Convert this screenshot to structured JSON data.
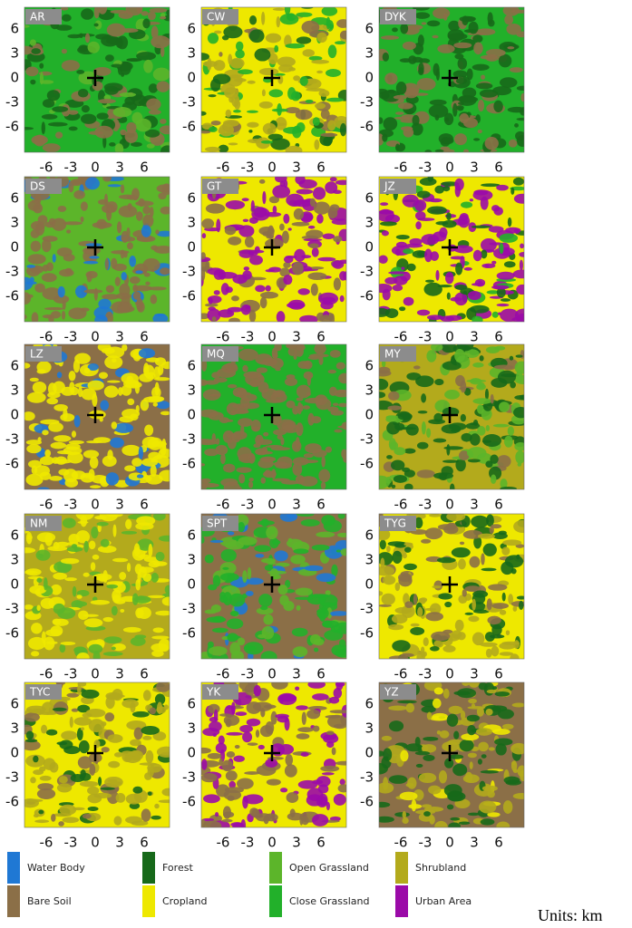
{
  "panels": [
    {
      "label": "AR"
    },
    {
      "label": "CW"
    },
    {
      "label": "DYK"
    },
    {
      "label": "DS"
    },
    {
      "label": "GT"
    },
    {
      "label": "JZ"
    },
    {
      "label": "LZ"
    },
    {
      "label": "MQ"
    },
    {
      "label": "MY"
    },
    {
      "label": "NM"
    },
    {
      "label": "SPT"
    },
    {
      "label": "TYG"
    },
    {
      "label": "TYC"
    },
    {
      "label": "YK"
    },
    {
      "label": "YZ"
    }
  ],
  "y_ticks": [
    6,
    3,
    0,
    -3,
    -6
  ],
  "x_ticks": [
    -6,
    -3,
    0,
    3,
    6
  ],
  "legend": [
    {
      "name": "Water Body",
      "color": "#1f78d4"
    },
    {
      "name": "Bare Soil",
      "color": "#8b6f47"
    },
    {
      "name": "Forest",
      "color": "#17691a"
    },
    {
      "name": "Cropland",
      "color": "#eee800"
    },
    {
      "name": "Open Grassland",
      "color": "#5cb52a"
    },
    {
      "name": "Close Grassland",
      "color": "#22b02a"
    },
    {
      "name": "Shrubland",
      "color": "#b3aa1c"
    },
    {
      "name": "Urban Area",
      "color": "#9b0aa8"
    }
  ],
  "units": "Units: km"
}
